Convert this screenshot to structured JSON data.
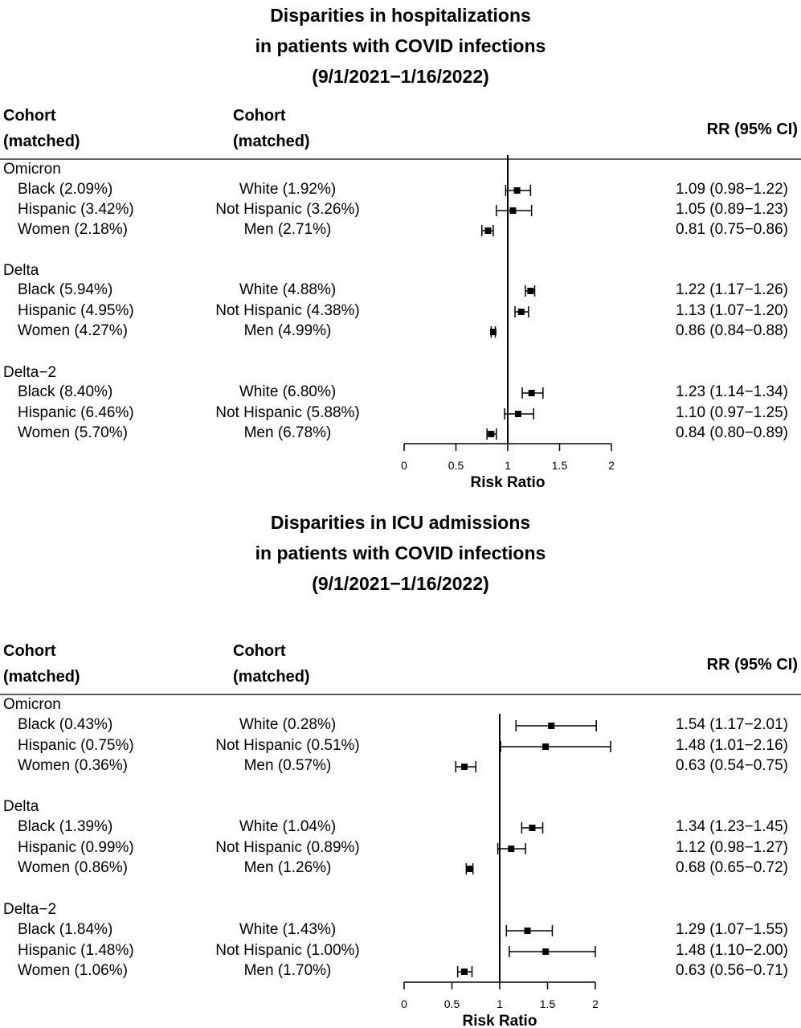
{
  "chart_data": [
    {
      "type": "forest",
      "title": [
        "Disparities in hospitalizations",
        "in patients with COVID infections",
        "(9/1/2021−1/16/2022)"
      ],
      "columns": [
        "Cohort\n(matched)",
        "Cohort\n(matched)",
        "RR (95% CI)"
      ],
      "xlabel": "Risk Ratio",
      "xlim": [
        0,
        2
      ],
      "xticks": [
        "0",
        "0.5",
        "1",
        "1.5",
        "2"
      ],
      "reference_line": 1,
      "groups": [
        {
          "name": "Omicron",
          "rows": [
            {
              "a": "Black (2.09%)",
              "b": "White (1.92%)",
              "rr": 1.09,
              "lo": 0.98,
              "hi": 1.22,
              "label": "1.09 (0.98−1.22)"
            },
            {
              "a": "Hispanic (3.42%)",
              "b": "Not Hispanic (3.26%)",
              "rr": 1.05,
              "lo": 0.89,
              "hi": 1.23,
              "label": "1.05 (0.89−1.23)"
            },
            {
              "a": "Women (2.18%)",
              "b": "Men (2.71%)",
              "rr": 0.81,
              "lo": 0.75,
              "hi": 0.86,
              "label": "0.81 (0.75−0.86)"
            }
          ]
        },
        {
          "name": "Delta",
          "rows": [
            {
              "a": "Black (5.94%)",
              "b": "White (4.88%)",
              "rr": 1.22,
              "lo": 1.17,
              "hi": 1.26,
              "label": "1.22 (1.17−1.26)"
            },
            {
              "a": "Hispanic (4.95%)",
              "b": "Not Hispanic (4.38%)",
              "rr": 1.13,
              "lo": 1.07,
              "hi": 1.2,
              "label": "1.13 (1.07−1.20)"
            },
            {
              "a": "Women (4.27%)",
              "b": "Men (4.99%)",
              "rr": 0.86,
              "lo": 0.84,
              "hi": 0.88,
              "label": "0.86 (0.84−0.88)"
            }
          ]
        },
        {
          "name": "Delta−2",
          "rows": [
            {
              "a": "Black (8.40%)",
              "b": "White (6.80%)",
              "rr": 1.23,
              "lo": 1.14,
              "hi": 1.34,
              "label": "1.23 (1.14−1.34)"
            },
            {
              "a": "Hispanic (6.46%)",
              "b": "Not Hispanic (5.88%)",
              "rr": 1.1,
              "lo": 0.97,
              "hi": 1.25,
              "label": "1.10 (0.97−1.25)"
            },
            {
              "a": "Women (5.70%)",
              "b": "Men (6.78%)",
              "rr": 0.84,
              "lo": 0.8,
              "hi": 0.89,
              "label": "0.84 (0.80−0.89)"
            }
          ]
        }
      ]
    },
    {
      "type": "forest",
      "title": [
        "Disparities in ICU admissions",
        "in patients with COVID infections",
        "(9/1/2021−1/16/2022)"
      ],
      "columns": [
        "Cohort\n(matched)",
        "Cohort\n(matched)",
        "RR (95% CI)"
      ],
      "xlabel": "Risk Ratio",
      "xlim": [
        0,
        2
      ],
      "xticks": [
        "0",
        "0.5",
        "1",
        "1.5",
        "2"
      ],
      "reference_line": 1,
      "groups": [
        {
          "name": "Omicron",
          "rows": [
            {
              "a": "Black (0.43%)",
              "b": "White (0.28%)",
              "rr": 1.54,
              "lo": 1.17,
              "hi": 2.01,
              "label": "1.54 (1.17−2.01)"
            },
            {
              "a": "Hispanic (0.75%)",
              "b": "Not Hispanic (0.51%)",
              "rr": 1.48,
              "lo": 1.01,
              "hi": 2.16,
              "label": "1.48 (1.01−2.16)"
            },
            {
              "a": "Women (0.36%)",
              "b": "Men (0.57%)",
              "rr": 0.63,
              "lo": 0.54,
              "hi": 0.75,
              "label": "0.63 (0.54−0.75)"
            }
          ]
        },
        {
          "name": "Delta",
          "rows": [
            {
              "a": "Black (1.39%)",
              "b": "White (1.04%)",
              "rr": 1.34,
              "lo": 1.23,
              "hi": 1.45,
              "label": "1.34 (1.23−1.45)"
            },
            {
              "a": "Hispanic (0.99%)",
              "b": "Not Hispanic (0.89%)",
              "rr": 1.12,
              "lo": 0.98,
              "hi": 1.27,
              "label": "1.12 (0.98−1.27)"
            },
            {
              "a": "Women (0.86%)",
              "b": "Men (1.26%)",
              "rr": 0.68,
              "lo": 0.65,
              "hi": 0.72,
              "label": "0.68 (0.65−0.72)"
            }
          ]
        },
        {
          "name": "Delta−2",
          "rows": [
            {
              "a": "Black (1.84%)",
              "b": "White (1.43%)",
              "rr": 1.29,
              "lo": 1.07,
              "hi": 1.55,
              "label": "1.29 (1.07−1.55)"
            },
            {
              "a": "Hispanic (1.48%)",
              "b": "Not Hispanic (1.00%)",
              "rr": 1.48,
              "lo": 1.1,
              "hi": 2.0,
              "label": "1.48 (1.10−2.00)"
            },
            {
              "a": "Women (1.06%)",
              "b": "Men (1.70%)",
              "rr": 0.63,
              "lo": 0.56,
              "hi": 0.71,
              "label": "0.63 (0.56−0.71)"
            }
          ]
        }
      ]
    }
  ]
}
